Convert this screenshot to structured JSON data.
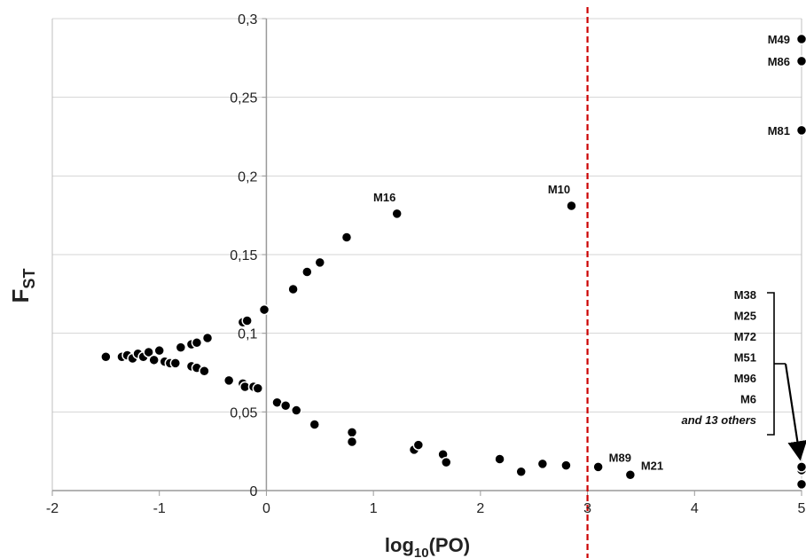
{
  "chart_data": {
    "type": "scatter",
    "title": "",
    "xlabel": {
      "main": "log",
      "sub": "10",
      "rest": "(PO)"
    },
    "ylabel": {
      "main": "F",
      "sub": "ST"
    },
    "xlim": [
      -2,
      5
    ],
    "ylim": [
      0,
      0.3
    ],
    "x_ticks": [
      -2,
      -1,
      0,
      1,
      2,
      3,
      4,
      5
    ],
    "x_tick_labels": [
      "-2",
      "-1",
      "0",
      "1",
      "2",
      "3",
      "4",
      "5"
    ],
    "y_ticks": [
      0,
      0.05,
      0.1,
      0.15,
      0.2,
      0.25,
      0.3
    ],
    "y_tick_labels": [
      "0",
      "0,05",
      "0,1",
      "0,15",
      "0,2",
      "0,25",
      "0,3"
    ],
    "grid": "horizontal",
    "threshold_x": 3,
    "threshold_color": "#cc0000",
    "marker_color": "#000000",
    "points": [
      {
        "x": -1.5,
        "y": 0.085
      },
      {
        "x": -1.35,
        "y": 0.085
      },
      {
        "x": -1.3,
        "y": 0.086
      },
      {
        "x": -1.25,
        "y": 0.084
      },
      {
        "x": -1.2,
        "y": 0.087
      },
      {
        "x": -1.15,
        "y": 0.085
      },
      {
        "x": -1.1,
        "y": 0.088
      },
      {
        "x": -1.05,
        "y": 0.083
      },
      {
        "x": -1.0,
        "y": 0.089
      },
      {
        "x": -0.95,
        "y": 0.082
      },
      {
        "x": -0.9,
        "y": 0.081
      },
      {
        "x": -0.85,
        "y": 0.081
      },
      {
        "x": -0.8,
        "y": 0.091
      },
      {
        "x": -0.7,
        "y": 0.093
      },
      {
        "x": -0.65,
        "y": 0.094
      },
      {
        "x": -0.55,
        "y": 0.097
      },
      {
        "x": -0.7,
        "y": 0.079
      },
      {
        "x": -0.65,
        "y": 0.078
      },
      {
        "x": -0.58,
        "y": 0.076
      },
      {
        "x": -0.35,
        "y": 0.07
      },
      {
        "x": -0.22,
        "y": 0.068
      },
      {
        "x": -0.2,
        "y": 0.066
      },
      {
        "x": -0.12,
        "y": 0.066
      },
      {
        "x": -0.08,
        "y": 0.065
      },
      {
        "x": -0.22,
        "y": 0.107
      },
      {
        "x": -0.18,
        "y": 0.108
      },
      {
        "x": -0.02,
        "y": 0.115
      },
      {
        "x": 0.25,
        "y": 0.128
      },
      {
        "x": 0.38,
        "y": 0.139
      },
      {
        "x": 0.5,
        "y": 0.145
      },
      {
        "x": 0.75,
        "y": 0.161
      },
      {
        "x": 1.22,
        "y": 0.176,
        "label": "M16"
      },
      {
        "x": 2.85,
        "y": 0.181,
        "label": "M10"
      },
      {
        "x": 0.1,
        "y": 0.056
      },
      {
        "x": 0.18,
        "y": 0.054
      },
      {
        "x": 0.28,
        "y": 0.051
      },
      {
        "x": 0.45,
        "y": 0.042
      },
      {
        "x": 0.8,
        "y": 0.037
      },
      {
        "x": 0.8,
        "y": 0.031
      },
      {
        "x": 1.38,
        "y": 0.026
      },
      {
        "x": 1.42,
        "y": 0.029
      },
      {
        "x": 1.65,
        "y": 0.023
      },
      {
        "x": 1.68,
        "y": 0.018
      },
      {
        "x": 2.18,
        "y": 0.02
      },
      {
        "x": 2.38,
        "y": 0.012
      },
      {
        "x": 2.58,
        "y": 0.017
      },
      {
        "x": 2.8,
        "y": 0.016
      },
      {
        "x": 3.1,
        "y": 0.015,
        "label": "M89"
      },
      {
        "x": 3.4,
        "y": 0.01,
        "label": "M21"
      },
      {
        "x": 5.0,
        "y": 0.287,
        "label": "M49"
      },
      {
        "x": 5.0,
        "y": 0.273,
        "label": "M86"
      },
      {
        "x": 5.0,
        "y": 0.229,
        "label": "M81"
      },
      {
        "x": 5.0,
        "y": 0.004
      },
      {
        "x": 5.0,
        "y": 0.013
      },
      {
        "x": 5.0,
        "y": 0.015
      }
    ],
    "annotation_list": {
      "labels": [
        "M38",
        "M25",
        "M72",
        "M51",
        "M96",
        "M6"
      ],
      "more": "and 13 others"
    }
  }
}
